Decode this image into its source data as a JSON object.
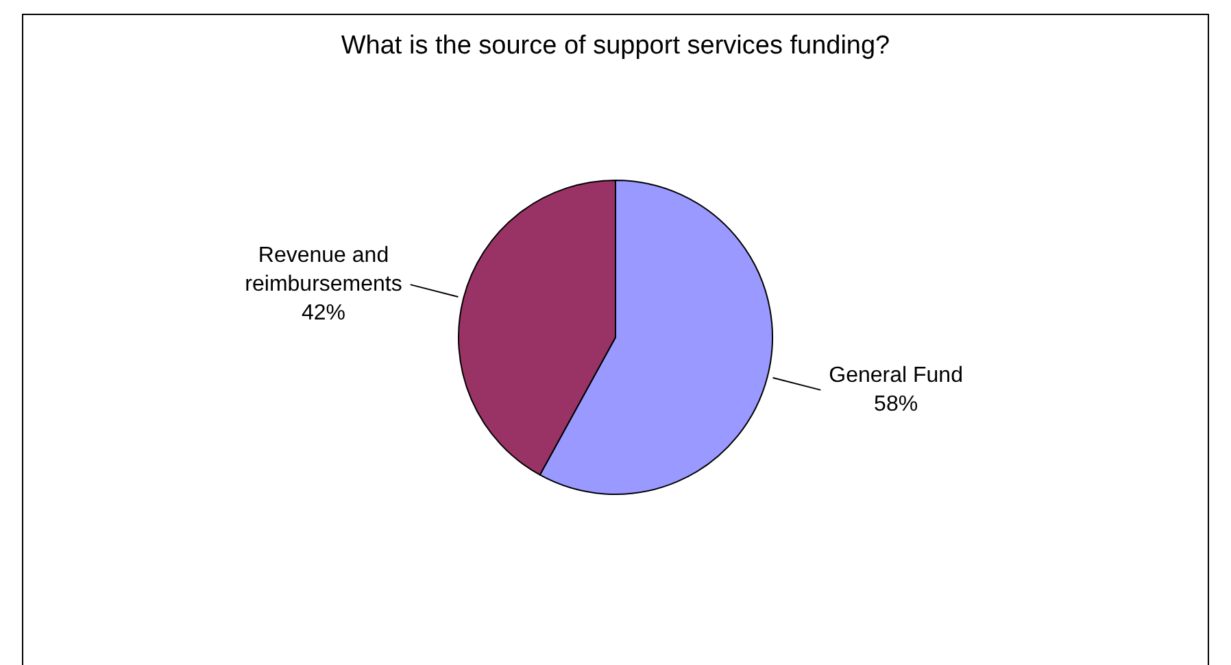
{
  "chart_data": {
    "type": "pie",
    "title": "What is the source of support services funding?",
    "categories": [
      "General Fund",
      "Revenue and reimbursements"
    ],
    "values": [
      58,
      42
    ],
    "colors": [
      "#9999ff",
      "#993366"
    ],
    "value_labels": [
      "58%",
      "42%"
    ],
    "legend": false
  }
}
